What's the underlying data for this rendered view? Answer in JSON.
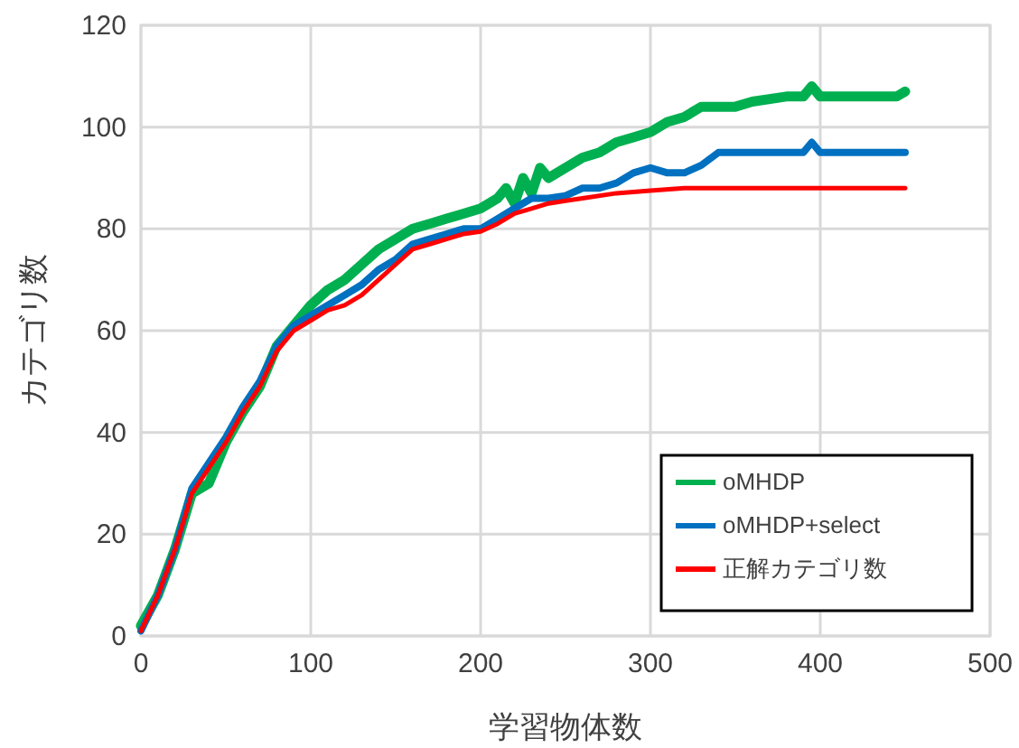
{
  "chart_data": {
    "type": "line",
    "xlabel": "学習物体数",
    "ylabel": "カテゴリ数",
    "xlim": [
      0,
      500
    ],
    "ylim": [
      0,
      120
    ],
    "xticks": [
      0,
      100,
      200,
      300,
      400,
      500
    ],
    "yticks": [
      0,
      20,
      40,
      60,
      80,
      100,
      120
    ],
    "grid": true,
    "legend": "bottom right",
    "marker": "none",
    "line_style": "solid",
    "series": [
      {
        "name": "oMHDP",
        "color": "#00b050",
        "x": [
          0,
          10,
          20,
          30,
          40,
          45,
          50,
          60,
          70,
          80,
          90,
          100,
          110,
          120,
          130,
          140,
          150,
          160,
          170,
          180,
          190,
          200,
          210,
          215,
          220,
          225,
          230,
          235,
          240,
          250,
          260,
          270,
          280,
          290,
          300,
          310,
          320,
          330,
          350,
          360,
          380,
          390,
          395,
          400,
          430,
          445,
          450
        ],
        "values": [
          2,
          8,
          17,
          28,
          30,
          34,
          38,
          44,
          49,
          57,
          61,
          65,
          68,
          70,
          73,
          76,
          78,
          80,
          81,
          82,
          83,
          84,
          86,
          88,
          85,
          90,
          87,
          92,
          90,
          92,
          94,
          95,
          97,
          98,
          99,
          101,
          102,
          104,
          104,
          105,
          106,
          106,
          108,
          106,
          106,
          106,
          107
        ]
      },
      {
        "name": "oMHDP+select",
        "color": "#0070c0",
        "x": [
          0,
          10,
          20,
          30,
          40,
          50,
          60,
          70,
          80,
          90,
          100,
          110,
          120,
          130,
          140,
          150,
          160,
          170,
          180,
          190,
          200,
          210,
          220,
          230,
          240,
          250,
          260,
          270,
          280,
          290,
          300,
          310,
          320,
          330,
          340,
          350,
          390,
          395,
          400,
          420,
          450
        ],
        "values": [
          1,
          8,
          17,
          29,
          34,
          39,
          45,
          50,
          57,
          61,
          63,
          65,
          67,
          69,
          72,
          74,
          77,
          78,
          79,
          80,
          80,
          82,
          84,
          86,
          86,
          86.5,
          88,
          88,
          89,
          91,
          92,
          91,
          91,
          92.5,
          95,
          95,
          95,
          97,
          95,
          95,
          95
        ]
      },
      {
        "name": "正解カテゴリ数",
        "color": "#ff0000",
        "x": [
          0,
          10,
          20,
          30,
          40,
          50,
          60,
          70,
          80,
          90,
          100,
          110,
          120,
          130,
          140,
          150,
          160,
          170,
          180,
          190,
          200,
          210,
          220,
          230,
          240,
          250,
          260,
          280,
          300,
          320,
          350,
          400,
          450
        ],
        "values": [
          1,
          8,
          17,
          28,
          33,
          38,
          44,
          49,
          56,
          60,
          62,
          64,
          65,
          67,
          70,
          73,
          76,
          77,
          78,
          79,
          79.5,
          81,
          83,
          84,
          85,
          85.5,
          86,
          87,
          87.5,
          88,
          88,
          88,
          88
        ]
      }
    ]
  }
}
